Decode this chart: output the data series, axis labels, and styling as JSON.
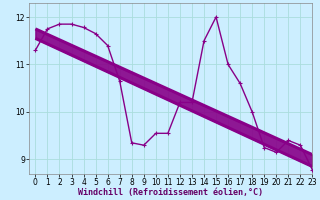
{
  "xlabel": "Windchill (Refroidissement éolien,°C)",
  "background_color": "#cceeff",
  "line_color": "#880088",
  "grid_color": "#aadddd",
  "xlim": [
    -0.5,
    23
  ],
  "ylim": [
    8.7,
    12.3
  ],
  "yticks": [
    9,
    10,
    11,
    12
  ],
  "xticks": [
    0,
    1,
    2,
    3,
    4,
    5,
    6,
    7,
    8,
    9,
    10,
    11,
    12,
    13,
    14,
    15,
    16,
    17,
    18,
    19,
    20,
    21,
    22,
    23
  ],
  "x": [
    0,
    1,
    2,
    3,
    4,
    5,
    6,
    7,
    8,
    9,
    10,
    11,
    12,
    13,
    14,
    15,
    16,
    17,
    18,
    19,
    20,
    21,
    22,
    23
  ],
  "y_main": [
    11.3,
    11.75,
    11.85,
    11.85,
    11.78,
    11.65,
    11.4,
    10.65,
    9.35,
    9.3,
    9.55,
    9.55,
    10.2,
    10.2,
    11.5,
    12.0,
    11.0,
    10.6,
    10.0,
    9.25,
    9.15,
    9.4,
    9.3,
    8.78
  ],
  "y_linear1_start": 11.75,
  "y_linear1_end": 9.1,
  "y_linear2_start": 11.55,
  "y_linear2_end": 8.85,
  "marker_size": 3.5,
  "linewidth_main": 1.0,
  "linewidth_trend": 2.2
}
